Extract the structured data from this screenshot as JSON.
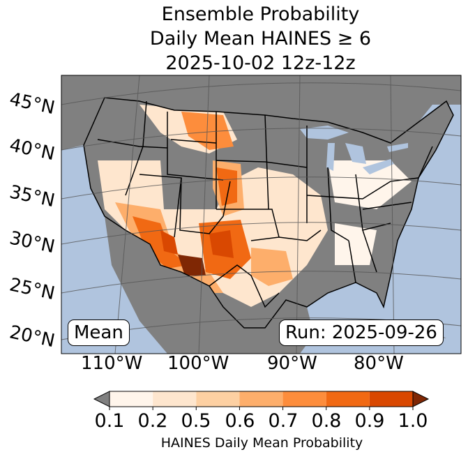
{
  "title": {
    "line1": "Ensemble Probability",
    "line2": "Daily Mean HAINES ≥ 6",
    "line3": "2025-10-02 12z-12z"
  },
  "map": {
    "lat_labels": [
      "45°N",
      "40°N",
      "35°N",
      "30°N",
      "25°N",
      "20°N"
    ],
    "lon_labels": [
      "110°W",
      "100°W",
      "90°W",
      "80°W"
    ],
    "ocean_color": "#b0c4de",
    "land_no_data_color": "#808080",
    "stat_label": "Mean",
    "run_label": "Run: 2025-09-26"
  },
  "colorbar": {
    "ticks": [
      "0.1",
      "0.2",
      "0.5",
      "0.6",
      "0.7",
      "0.8",
      "0.9",
      "1.0"
    ],
    "label": "HAINES Daily Mean Probability",
    "under_color": "#808080",
    "over_color": "#7f2704",
    "bin_colors": [
      "#fff5eb",
      "#fee6ce",
      "#fdd0a2",
      "#fdae6b",
      "#fd8d3c",
      "#f16913",
      "#d94801"
    ]
  }
}
